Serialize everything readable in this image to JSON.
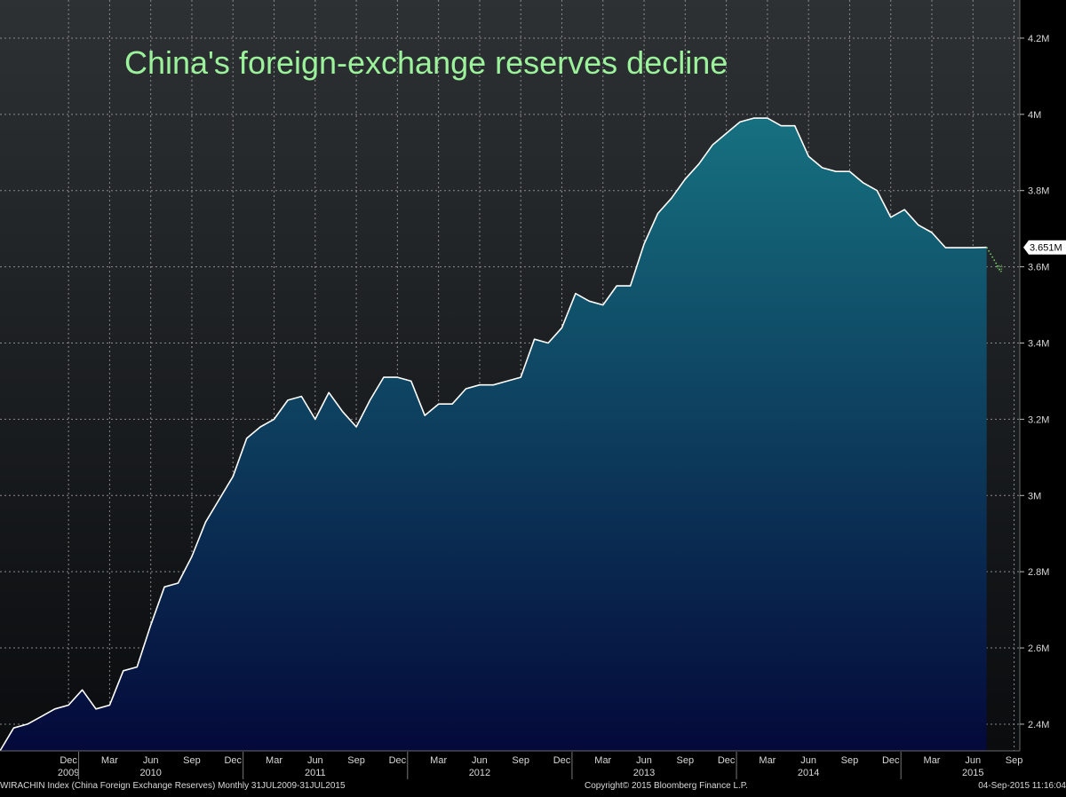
{
  "chart_data": {
    "type": "area",
    "title": "China's foreign-exchange reserves decline",
    "xlabel": "",
    "ylabel": "",
    "ylim": [
      2.33,
      4.3
    ],
    "y_ticks": [
      2.4,
      2.6,
      2.8,
      3.0,
      3.2,
      3.4,
      3.6,
      3.8,
      4.0,
      4.2
    ],
    "y_tick_labels": [
      "2.4M",
      "2.6M",
      "2.8M",
      "3M",
      "3.2M",
      "3.4M",
      "3.6M",
      "3.8M",
      "4M",
      "4.2M"
    ],
    "x_start": "2009-07",
    "x_end": "2015-10",
    "x_ticks": [
      {
        "date": "2009-12",
        "label": "Dec"
      },
      {
        "date": "2010-03",
        "label": "Mar"
      },
      {
        "date": "2010-06",
        "label": "Jun"
      },
      {
        "date": "2010-09",
        "label": "Sep"
      },
      {
        "date": "2010-12",
        "label": "Dec"
      },
      {
        "date": "2011-03",
        "label": "Mar"
      },
      {
        "date": "2011-06",
        "label": "Jun"
      },
      {
        "date": "2011-09",
        "label": "Sep"
      },
      {
        "date": "2011-12",
        "label": "Dec"
      },
      {
        "date": "2012-03",
        "label": "Mar"
      },
      {
        "date": "2012-06",
        "label": "Jun"
      },
      {
        "date": "2012-09",
        "label": "Sep"
      },
      {
        "date": "2012-12",
        "label": "Dec"
      },
      {
        "date": "2013-03",
        "label": "Mar"
      },
      {
        "date": "2013-06",
        "label": "Jun"
      },
      {
        "date": "2013-09",
        "label": "Sep"
      },
      {
        "date": "2013-12",
        "label": "Dec"
      },
      {
        "date": "2014-03",
        "label": "Mar"
      },
      {
        "date": "2014-06",
        "label": "Jun"
      },
      {
        "date": "2014-09",
        "label": "Sep"
      },
      {
        "date": "2014-12",
        "label": "Dec"
      },
      {
        "date": "2015-03",
        "label": "Mar"
      },
      {
        "date": "2015-06",
        "label": "Jun"
      },
      {
        "date": "2015-09",
        "label": "Sep"
      }
    ],
    "year_labels": [
      {
        "date": "2009-12",
        "label": "2009"
      },
      {
        "date": "2010-06",
        "label": "2010"
      },
      {
        "date": "2011-06",
        "label": "2011"
      },
      {
        "date": "2012-06",
        "label": "2012"
      },
      {
        "date": "2013-06",
        "label": "2013"
      },
      {
        "date": "2014-06",
        "label": "2014"
      },
      {
        "date": "2015-06",
        "label": "2015"
      }
    ],
    "series": [
      {
        "x": [
          "2009-07",
          "2009-08",
          "2009-09",
          "2009-10",
          "2009-11",
          "2009-12",
          "2010-01",
          "2010-02",
          "2010-03",
          "2010-04",
          "2010-05",
          "2010-06",
          "2010-07",
          "2010-08",
          "2010-09",
          "2010-10",
          "2010-11",
          "2010-12",
          "2011-01",
          "2011-02",
          "2011-03",
          "2011-04",
          "2011-05",
          "2011-06",
          "2011-07",
          "2011-08",
          "2011-09",
          "2011-10",
          "2011-11",
          "2011-12",
          "2012-01",
          "2012-02",
          "2012-03",
          "2012-04",
          "2012-05",
          "2012-06",
          "2012-07",
          "2012-08",
          "2012-09",
          "2012-10",
          "2012-11",
          "2012-12",
          "2013-01",
          "2013-02",
          "2013-03",
          "2013-04",
          "2013-05",
          "2013-06",
          "2013-07",
          "2013-08",
          "2013-09",
          "2013-10",
          "2013-11",
          "2013-12",
          "2014-01",
          "2014-02",
          "2014-03",
          "2014-04",
          "2014-05",
          "2014-06",
          "2014-07",
          "2014-08",
          "2014-09",
          "2014-10",
          "2014-11",
          "2014-12",
          "2015-01",
          "2015-02",
          "2015-03",
          "2015-04",
          "2015-05",
          "2015-06",
          "2015-07"
        ],
        "y": [
          2.33,
          2.39,
          2.4,
          2.42,
          2.44,
          2.45,
          2.49,
          2.44,
          2.45,
          2.54,
          2.55,
          2.66,
          2.76,
          2.77,
          2.84,
          2.93,
          2.99,
          3.05,
          3.15,
          3.18,
          3.2,
          3.25,
          3.26,
          3.2,
          3.27,
          3.22,
          3.18,
          3.25,
          3.31,
          3.31,
          3.3,
          3.21,
          3.24,
          3.24,
          3.28,
          3.29,
          3.29,
          3.3,
          3.31,
          3.41,
          3.4,
          3.44,
          3.53,
          3.51,
          3.5,
          3.55,
          3.55,
          3.66,
          3.74,
          3.78,
          3.83,
          3.87,
          3.92,
          3.95,
          3.98,
          3.99,
          3.99,
          3.97,
          3.97,
          3.89,
          3.86,
          3.85,
          3.85,
          3.82,
          3.8,
          3.73,
          3.75,
          3.71,
          3.69,
          3.65,
          3.65,
          3.65,
          3.651
        ]
      }
    ],
    "projection": {
      "x": [
        "2015-07",
        "2015-08"
      ],
      "y": [
        3.651,
        3.59
      ]
    },
    "last_value_label": "3.651M",
    "grid": true,
    "legend": "none"
  },
  "footer": {
    "left": "WIRACHIN Index (China Foreign Exchange Reserves)  Monthly 31JUL2009-31JUL2015",
    "center": "Copyright© 2015 Bloomberg Finance L.P.",
    "right": "04-Sep-2015 11:16:04"
  },
  "colors": {
    "background_top": "#2d3134",
    "background_bottom": "#0a0c0e",
    "area_top": "#167180",
    "area_bottom": "#04093a",
    "line": "#ffffff",
    "grid": "#8a8a8a",
    "title": "#9cf29a",
    "projection": "#7bd36d",
    "last_value_badge": "#ffffff"
  }
}
